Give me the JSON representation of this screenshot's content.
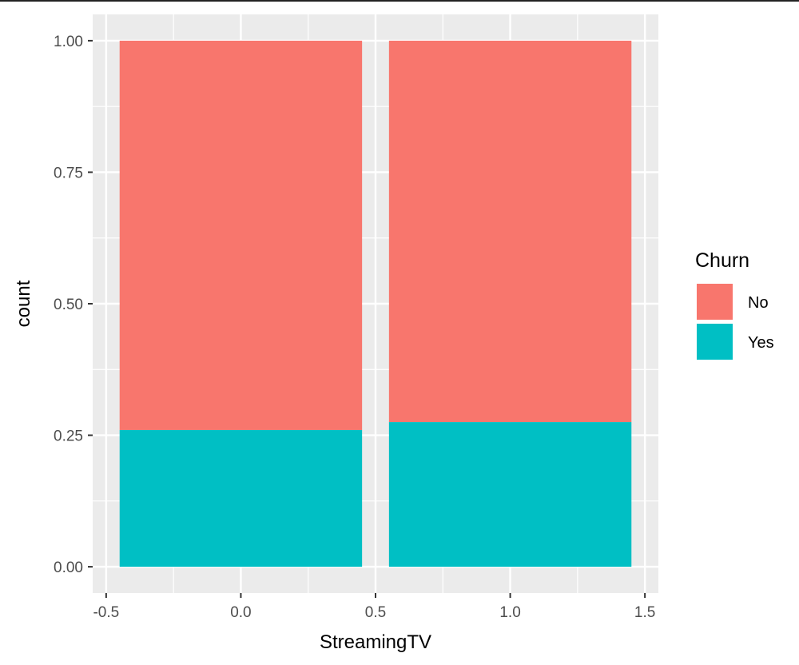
{
  "chart_data": {
    "type": "bar",
    "stacked": true,
    "x": [
      0,
      1
    ],
    "series": [
      {
        "name": "No",
        "color": "#F8766D",
        "bottoms": [
          0.26,
          0.275
        ],
        "tops": [
          1.0,
          1.0
        ]
      },
      {
        "name": "Yes",
        "color": "#00BFC4",
        "bottoms": [
          0.0,
          0.0
        ],
        "tops": [
          0.26,
          0.275
        ]
      }
    ],
    "bar_width": 0.9,
    "xlabel": "StreamingTV",
    "ylabel": "count",
    "xlim": [
      -0.55,
      1.55
    ],
    "ylim": [
      -0.05,
      1.05
    ],
    "x_ticks": [
      -0.5,
      0.0,
      0.5,
      1.0,
      1.5
    ],
    "x_tick_labels": [
      "-0.5",
      "0.0",
      "0.5",
      "1.0",
      "1.5"
    ],
    "y_ticks": [
      0.0,
      0.25,
      0.5,
      0.75,
      1.0
    ],
    "y_tick_labels": [
      "0.00",
      "0.25",
      "0.50",
      "0.75",
      "1.00"
    ],
    "legend": {
      "title": "Churn",
      "position": "right",
      "entries": [
        "No",
        "Yes"
      ]
    },
    "grid": true,
    "panel_background": "#EBEBEB"
  }
}
